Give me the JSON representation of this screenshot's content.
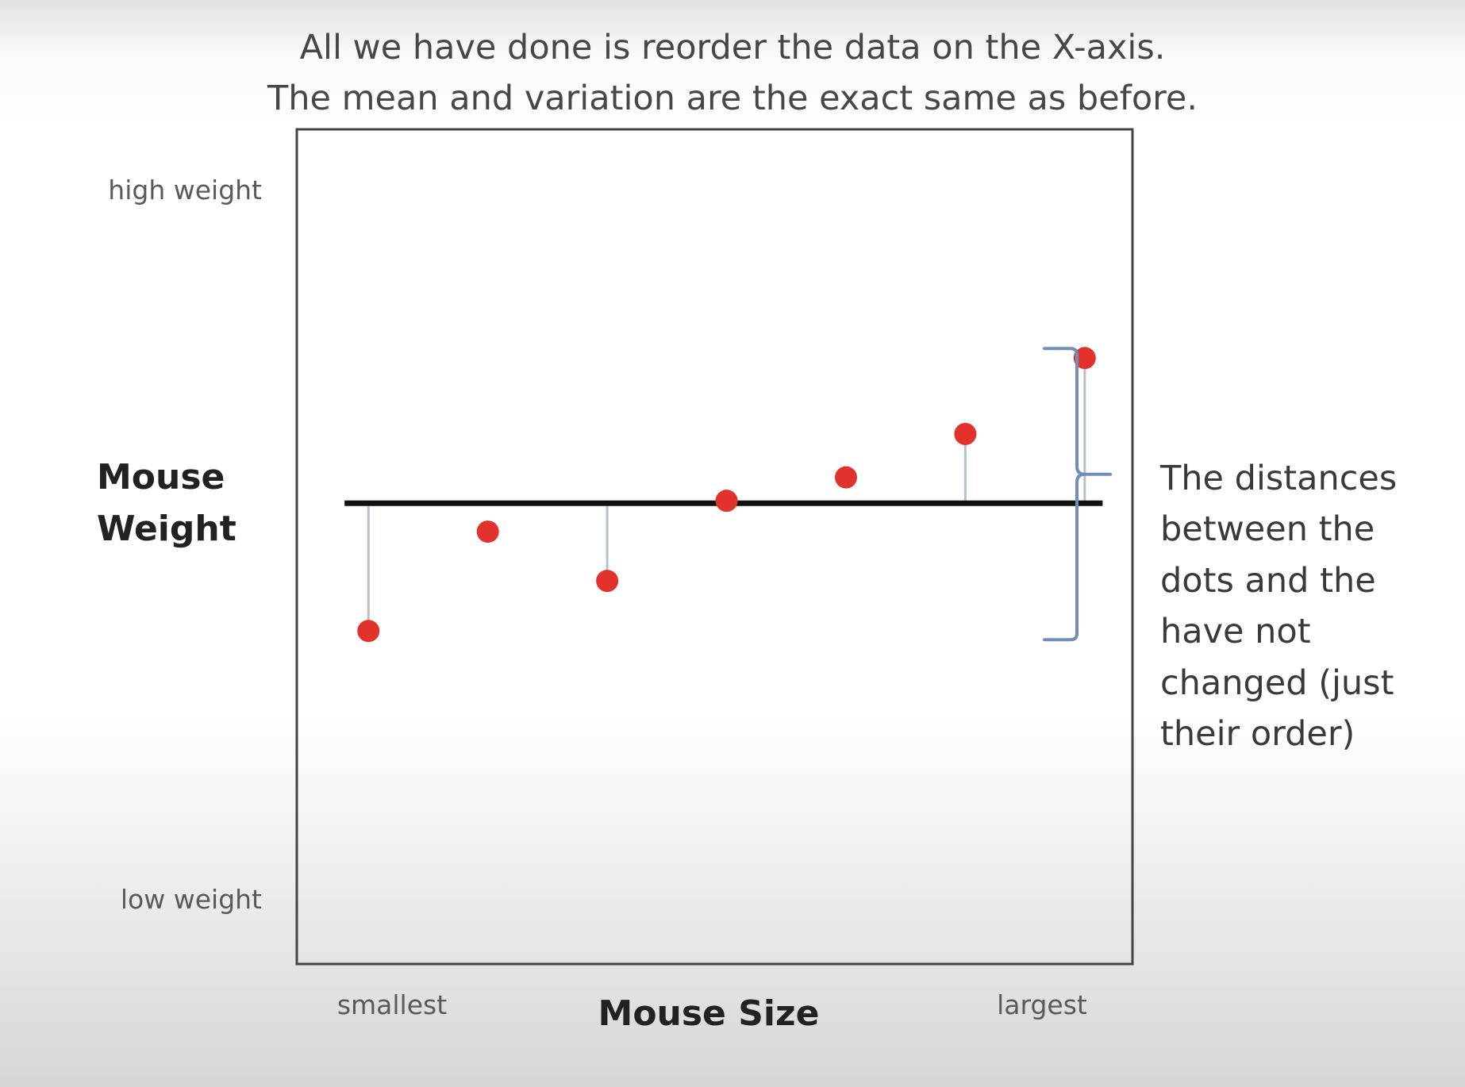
{
  "title_lines": [
    "All we have done is reorder the data on the X-axis.",
    "The mean and variation are the exact same as before."
  ],
  "annotation_lines": [
    "The distances",
    "between the",
    "dots and the",
    "have not",
    "changed (just",
    "their order)"
  ],
  "colors": {
    "point": "#e1332b",
    "residual": "#b8bfc9",
    "mean_line": "#111111",
    "brace": "#6f8fb8",
    "frame": "#444444",
    "text": "#3a3a3a"
  },
  "chart_data": {
    "type": "scatter",
    "xlabel": "Mouse Size",
    "ylabel": "Mouse Weight",
    "x_tick_labels": {
      "low": "smallest",
      "high": "largest"
    },
    "y_tick_labels": {
      "low": "low weight",
      "high": "high weight"
    },
    "xlim": [
      0,
      7
    ],
    "ylim": [
      0,
      10
    ],
    "mean": 5.52,
    "mean_line_extent": [
      0.4,
      6.75
    ],
    "points": [
      {
        "x": 0.6,
        "y": 3.99,
        "residual_drawn": true
      },
      {
        "x": 1.6,
        "y": 5.18,
        "residual_drawn": false
      },
      {
        "x": 2.6,
        "y": 4.59,
        "residual_drawn": true
      },
      {
        "x": 3.6,
        "y": 5.55,
        "residual_drawn": false
      },
      {
        "x": 4.6,
        "y": 5.83,
        "residual_drawn": false
      },
      {
        "x": 5.6,
        "y": 6.35,
        "residual_drawn": true
      },
      {
        "x": 6.6,
        "y": 7.26,
        "residual_drawn": true
      }
    ],
    "grid": false,
    "legend": "none"
  }
}
